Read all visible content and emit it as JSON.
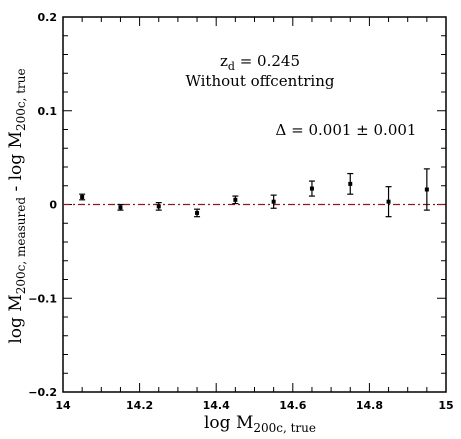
{
  "chart_data": {
    "type": "scatter",
    "xlabel": {
      "main": "log M",
      "sub": "200c, true"
    },
    "ylabel": {
      "main1": "log M",
      "sub1": "200c, measured",
      "mid": " - log M",
      "sub2": "200c, true"
    },
    "xlim": [
      14,
      15
    ],
    "ylim": [
      -0.2,
      0.2
    ],
    "x_ticks": [
      14,
      14.2,
      14.4,
      14.6,
      14.8,
      15
    ],
    "x_tick_labels": [
      "14",
      "14.2",
      "14.4",
      "14.6",
      "14.8",
      "15"
    ],
    "y_ticks": [
      -0.2,
      -0.1,
      0,
      0.1,
      0.2
    ],
    "y_tick_labels": [
      "−0.2",
      "−0.1",
      "0",
      "0.1",
      "0.2"
    ],
    "grid": false,
    "reference_line": {
      "y": 0,
      "style": "dash-dot",
      "color": "#8b1a1a"
    },
    "points": [
      {
        "x": 14.05,
        "y": 0.008,
        "err": 0.003
      },
      {
        "x": 14.15,
        "y": -0.003,
        "err": 0.003
      },
      {
        "x": 14.25,
        "y": -0.002,
        "err": 0.004
      },
      {
        "x": 14.35,
        "y": -0.009,
        "err": 0.004
      },
      {
        "x": 14.45,
        "y": 0.005,
        "err": 0.004
      },
      {
        "x": 14.55,
        "y": 0.003,
        "err": 0.007
      },
      {
        "x": 14.65,
        "y": 0.017,
        "err": 0.008
      },
      {
        "x": 14.75,
        "y": 0.022,
        "err": 0.011
      },
      {
        "x": 14.85,
        "y": 0.003,
        "err": 0.016
      },
      {
        "x": 14.95,
        "y": 0.016,
        "err": 0.022
      }
    ],
    "annotations": {
      "line1_main": "z",
      "line1_sub": "d",
      "line1_rest": " = 0.245",
      "line2": "Without offcentring",
      "line3": "Δ = 0.001 ± 0.001"
    }
  }
}
